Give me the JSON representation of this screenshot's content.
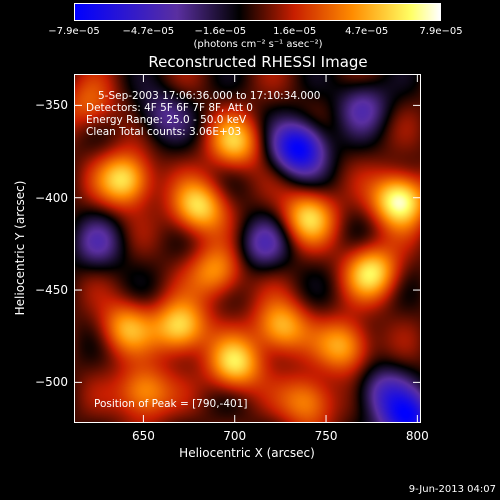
{
  "colorbar": {
    "ticks": [
      "−7.9e−05",
      "−4.7e−05",
      "−1.6e−05",
      "1.6e−05",
      "4.7e−05",
      "7.9e−05"
    ],
    "tick_values": [
      -7.9e-05,
      -4.7e-05,
      -1.6e-05,
      1.6e-05,
      4.7e-05,
      7.9e-05
    ],
    "range": [
      -7.9e-05,
      7.9e-05
    ],
    "unit_label": "(photons cm⁻² s⁻¹ asec⁻²)",
    "colors": [
      "#0000ff",
      "#5a2fa0",
      "#000000",
      "#c81e00",
      "#ff8c00",
      "#ffff64",
      "#ffffff"
    ]
  },
  "plot": {
    "title": "Reconstructed RHESSI Image",
    "xlabel": "Heliocentric X (arcsec)",
    "ylabel": "Heliocentric Y (arcsec)",
    "x_ticks": [
      "650",
      "700",
      "750",
      "800"
    ],
    "x_tick_values": [
      650,
      700,
      750,
      800
    ],
    "y_ticks": [
      "−350",
      "−400",
      "−450",
      "−500"
    ],
    "y_tick_values": [
      -350,
      -400,
      -450,
      -500
    ],
    "info_lines": [
      "5-Sep-2003 17:06:36.000 to 17:10:34.000",
      "Detectors: 4F 5F 6F 7F 8F, Att 0",
      "Energy Range: 25.0 - 50.0 keV",
      "Clean     Total counts: 3.06E+03"
    ],
    "peak_text": "Position of Peak = [790,-401]"
  },
  "footer": {
    "timestamp": "9-Jun-2013 04:07"
  },
  "chart_data": {
    "type": "heatmap",
    "title": "Reconstructed RHESSI Image",
    "xlabel": "Heliocentric X (arcsec)",
    "ylabel": "Heliocentric Y (arcsec)",
    "xlim": [
      612,
      802
    ],
    "ylim": [
      -522,
      -333
    ],
    "zlim": [
      -7.9e-05,
      7.9e-05
    ],
    "colorbar_label": "(photons cm⁻² s⁻¹ asec⁻²)",
    "peak": [
      790,
      -401
    ],
    "features": [
      {
        "x": 735,
        "y": -373,
        "value": -7.9e-05
      },
      {
        "x": 790,
        "y": -401,
        "value": 7.9e-05
      },
      {
        "x": 640,
        "y": -390,
        "value": 6.5e-05
      },
      {
        "x": 700,
        "y": -370,
        "value": 5e-05
      },
      {
        "x": 680,
        "y": -405,
        "value": 6e-05
      },
      {
        "x": 740,
        "y": -410,
        "value": 5.5e-05
      },
      {
        "x": 775,
        "y": -440,
        "value": 6e-05
      },
      {
        "x": 690,
        "y": -440,
        "value": 4.5e-05
      },
      {
        "x": 670,
        "y": -470,
        "value": 6.5e-05
      },
      {
        "x": 725,
        "y": -470,
        "value": 5.5e-05
      },
      {
        "x": 640,
        "y": -470,
        "value": 4.5e-05
      },
      {
        "x": 760,
        "y": -480,
        "value": 5e-05
      },
      {
        "x": 700,
        "y": -490,
        "value": 6e-05
      },
      {
        "x": 650,
        "y": -505,
        "value": 5e-05
      },
      {
        "x": 740,
        "y": -510,
        "value": 4.5e-05
      },
      {
        "x": 620,
        "y": -350,
        "value": 3e-05
      },
      {
        "x": 770,
        "y": -350,
        "value": -3.5e-05
      },
      {
        "x": 660,
        "y": -355,
        "value": -3e-05
      },
      {
        "x": 780,
        "y": -505,
        "value": -4e-05
      },
      {
        "x": 715,
        "y": -425,
        "value": -3.5e-05
      },
      {
        "x": 625,
        "y": -425,
        "value": -3e-05
      },
      {
        "x": 795,
        "y": -520,
        "value": -7e-05
      }
    ]
  }
}
